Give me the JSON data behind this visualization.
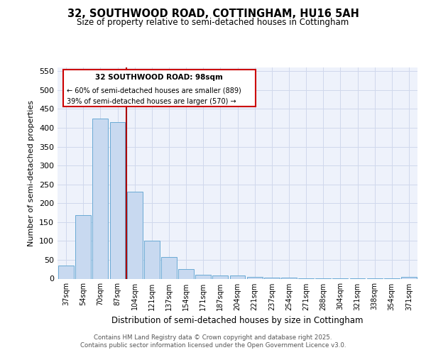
{
  "title_line1": "32, SOUTHWOOD ROAD, COTTINGHAM, HU16 5AH",
  "title_line2": "Size of property relative to semi-detached houses in Cottingham",
  "xlabel": "Distribution of semi-detached houses by size in Cottingham",
  "ylabel": "Number of semi-detached properties",
  "categories": [
    "37sqm",
    "54sqm",
    "70sqm",
    "87sqm",
    "104sqm",
    "121sqm",
    "137sqm",
    "154sqm",
    "171sqm",
    "187sqm",
    "204sqm",
    "221sqm",
    "237sqm",
    "254sqm",
    "271sqm",
    "288sqm",
    "304sqm",
    "321sqm",
    "338sqm",
    "354sqm",
    "371sqm"
  ],
  "values": [
    35,
    168,
    425,
    415,
    230,
    100,
    57,
    25,
    10,
    8,
    8,
    5,
    3,
    2,
    1,
    1,
    1,
    1,
    1,
    1,
    5
  ],
  "bar_color": "#c8d9f0",
  "bar_edge_color": "#6aaad4",
  "vline_x_index": 4,
  "vline_color": "#aa0000",
  "property_label": "32 SOUTHWOOD ROAD: 98sqm",
  "smaller_label": "← 60% of semi-detached houses are smaller (889)",
  "larger_label": "39% of semi-detached houses are larger (570) →",
  "annotation_box_color": "#cc0000",
  "ylim": [
    0,
    560
  ],
  "yticks": [
    0,
    50,
    100,
    150,
    200,
    250,
    300,
    350,
    400,
    450,
    500,
    550
  ],
  "footnote_line1": "Contains HM Land Registry data © Crown copyright and database right 2025.",
  "footnote_line2": "Contains public sector information licensed under the Open Government Licence v3.0.",
  "bg_color": "#eef2fb",
  "grid_color": "#d0d8ec"
}
